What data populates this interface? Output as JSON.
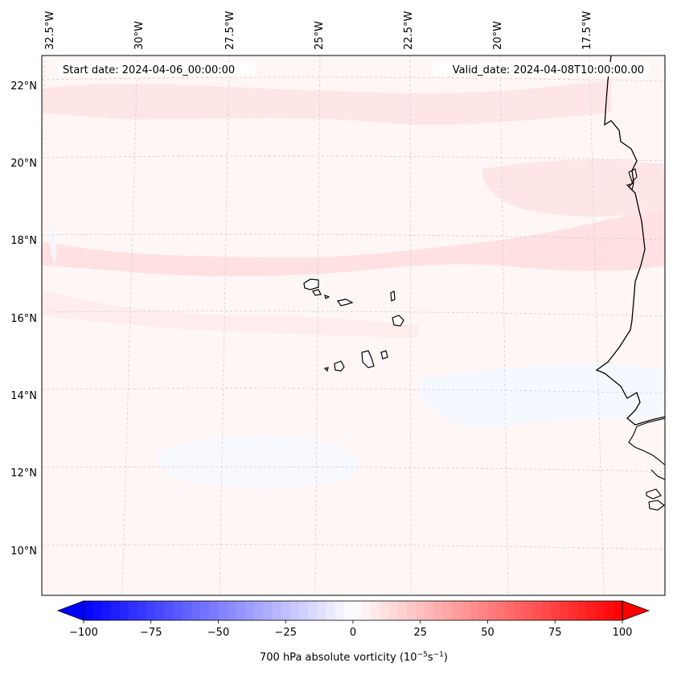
{
  "header": {
    "start_date": "Start date: 2024-04-06_00:00:00",
    "valid_date": "Valid_date: 2024-04-08T10:00:00.00"
  },
  "axes": {
    "longitude_labels": [
      "32.5°W",
      "30°W",
      "27.5°W",
      "25°W",
      "22.5°W",
      "20°W",
      "17.5°W"
    ],
    "latitude_labels": [
      "22°N",
      "20°N",
      "18°N",
      "16°N",
      "14°N",
      "12°N",
      "10°N"
    ]
  },
  "colorbar": {
    "label_prefix": "700 hPa absolute vorticity (10",
    "label_exp1": "−5",
    "label_mid": "s",
    "label_exp2": "−1",
    "label_suffix": ")",
    "ticks": [
      "−100",
      "−75",
      "−50",
      "−25",
      "0",
      "25",
      "50",
      "75",
      "100"
    ],
    "min": -100,
    "max": 100,
    "levels": 60,
    "colormap": "bwr",
    "extend": "both"
  },
  "colors": {
    "land_fill": "#ffffff",
    "coastline": "#000000",
    "gridline": "#c8c8c8",
    "field_base": "#fff6f6",
    "field_positive": "#ffe3e3",
    "field_negative": "#f5f8ff"
  }
}
